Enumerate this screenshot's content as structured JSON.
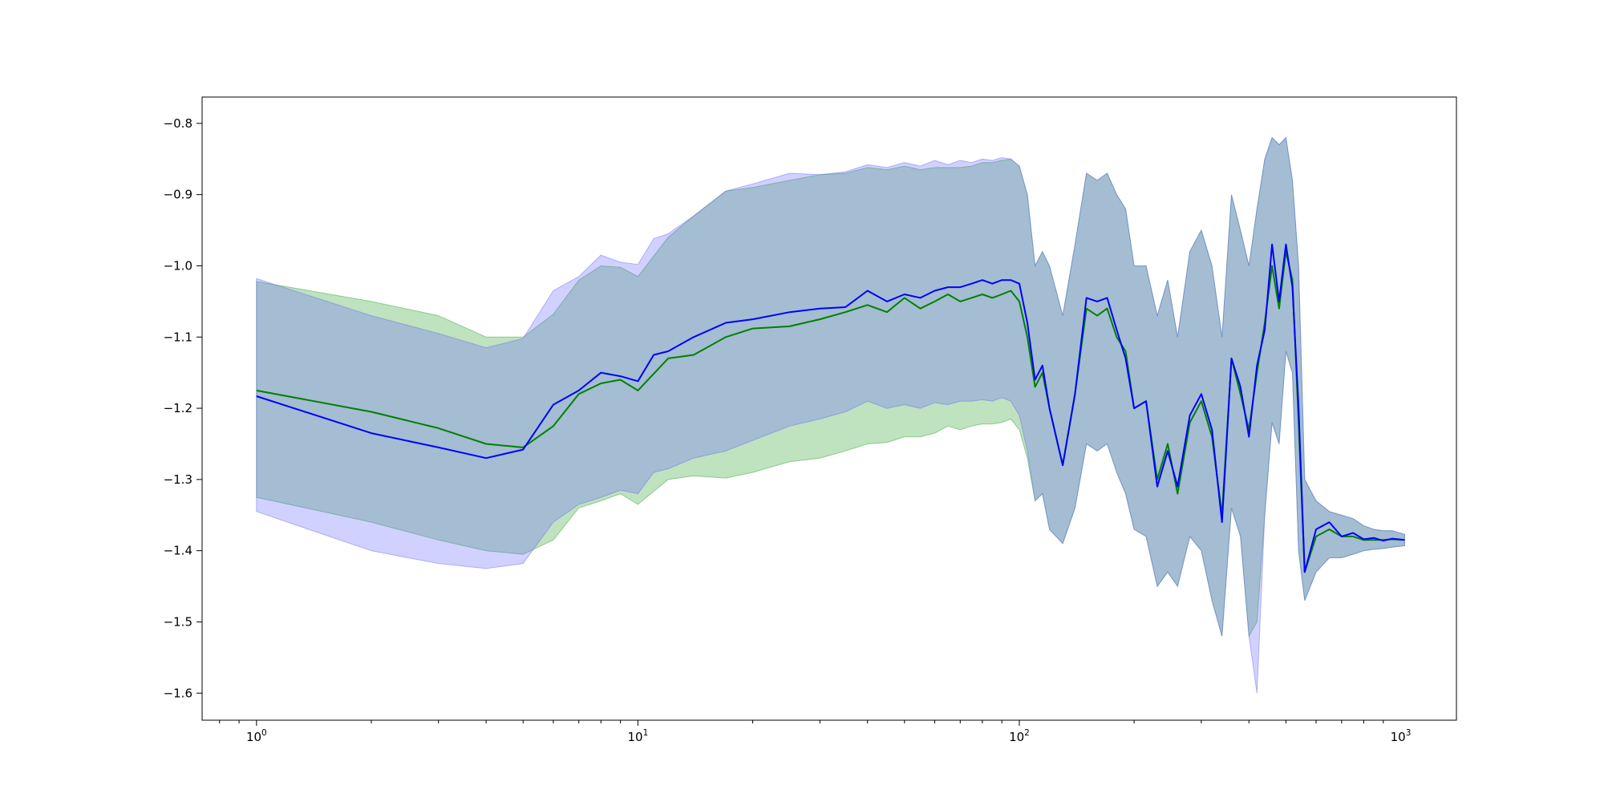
{
  "chart_data": {
    "type": "line",
    "title": "",
    "xlabel": "",
    "ylabel": "",
    "x_scale": "log",
    "xlim": [
      0.72,
      1400
    ],
    "ylim": [
      -1.638,
      -0.763
    ],
    "grid": false,
    "legend": "none",
    "x_ticks": [
      {
        "value": 1,
        "base": "10",
        "exp": "0"
      },
      {
        "value": 10,
        "base": "10",
        "exp": "1"
      },
      {
        "value": 100,
        "base": "10",
        "exp": "2"
      },
      {
        "value": 1000,
        "base": "10",
        "exp": "3"
      }
    ],
    "y_ticks": [
      {
        "value": -0.8,
        "label": "−0.8"
      },
      {
        "value": -0.9,
        "label": "−0.9"
      },
      {
        "value": -1.0,
        "label": "−1.0"
      },
      {
        "value": -1.1,
        "label": "−1.1"
      },
      {
        "value": -1.2,
        "label": "−1.2"
      },
      {
        "value": -1.3,
        "label": "−1.3"
      },
      {
        "value": -1.4,
        "label": "−1.4"
      },
      {
        "value": -1.5,
        "label": "−1.5"
      },
      {
        "value": -1.6,
        "label": "−1.6"
      }
    ],
    "series": [
      {
        "color": "#008000",
        "band_color": "#2ca02c",
        "x": [
          1,
          2,
          3,
          4,
          5,
          6,
          7,
          8,
          9,
          10,
          12,
          14,
          17,
          20,
          25,
          30,
          35,
          40,
          45,
          50,
          55,
          60,
          65,
          70,
          75,
          80,
          85,
          90,
          95,
          100,
          105,
          110,
          115,
          120,
          130,
          140,
          150,
          160,
          170,
          180,
          190,
          200,
          215,
          230,
          245,
          260,
          280,
          300,
          320,
          340,
          360,
          380,
          400,
          420,
          440,
          460,
          480,
          500,
          520,
          540,
          560,
          600,
          650,
          700,
          750,
          800,
          850,
          900,
          950,
          1024
        ],
        "mean": [
          -1.175,
          -1.205,
          -1.228,
          -1.25,
          -1.255,
          -1.225,
          -1.18,
          -1.165,
          -1.16,
          -1.175,
          -1.13,
          -1.125,
          -1.1,
          -1.088,
          -1.085,
          -1.075,
          -1.065,
          -1.055,
          -1.065,
          -1.045,
          -1.06,
          -1.05,
          -1.04,
          -1.05,
          -1.045,
          -1.04,
          -1.045,
          -1.04,
          -1.035,
          -1.05,
          -1.1,
          -1.17,
          -1.15,
          -1.2,
          -1.28,
          -1.18,
          -1.06,
          -1.07,
          -1.06,
          -1.1,
          -1.12,
          -1.2,
          -1.19,
          -1.3,
          -1.25,
          -1.32,
          -1.22,
          -1.19,
          -1.24,
          -1.35,
          -1.13,
          -1.18,
          -1.23,
          -1.15,
          -1.08,
          -1.0,
          -1.06,
          -0.98,
          -1.02,
          -1.22,
          -1.43,
          -1.38,
          -1.37,
          -1.38,
          -1.38,
          -1.385,
          -1.385,
          -1.385,
          -1.384,
          -1.385
        ],
        "upper": [
          -1.022,
          -1.05,
          -1.07,
          -1.1,
          -1.1,
          -1.068,
          -1.02,
          -1.0,
          -1.002,
          -1.015,
          -0.96,
          -0.93,
          -0.895,
          -0.89,
          -0.88,
          -0.872,
          -0.87,
          -0.862,
          -0.865,
          -0.86,
          -0.865,
          -0.862,
          -0.862,
          -0.862,
          -0.86,
          -0.855,
          -0.855,
          -0.852,
          -0.85,
          -0.86,
          -0.9,
          -1.0,
          -0.98,
          -1.0,
          -1.07,
          -0.97,
          -0.87,
          -0.88,
          -0.87,
          -0.9,
          -0.92,
          -1.0,
          -1.0,
          -1.07,
          -1.02,
          -1.1,
          -0.98,
          -0.95,
          -1.0,
          -1.1,
          -0.9,
          -0.95,
          -1.0,
          -0.92,
          -0.85,
          -0.82,
          -0.83,
          -0.82,
          -0.88,
          -1.0,
          -1.3,
          -1.33,
          -1.345,
          -1.35,
          -1.355,
          -1.365,
          -1.37,
          -1.372,
          -1.372,
          -1.377
        ],
        "lower": [
          -1.325,
          -1.36,
          -1.385,
          -1.4,
          -1.405,
          -1.385,
          -1.34,
          -1.33,
          -1.32,
          -1.335,
          -1.3,
          -1.295,
          -1.298,
          -1.29,
          -1.275,
          -1.27,
          -1.26,
          -1.25,
          -1.248,
          -1.24,
          -1.24,
          -1.235,
          -1.225,
          -1.23,
          -1.225,
          -1.222,
          -1.222,
          -1.22,
          -1.215,
          -1.23,
          -1.27,
          -1.33,
          -1.32,
          -1.37,
          -1.39,
          -1.34,
          -1.25,
          -1.26,
          -1.25,
          -1.29,
          -1.32,
          -1.37,
          -1.38,
          -1.45,
          -1.43,
          -1.45,
          -1.38,
          -1.4,
          -1.47,
          -1.52,
          -1.34,
          -1.38,
          -1.52,
          -1.5,
          -1.35,
          -1.22,
          -1.25,
          -1.12,
          -1.15,
          -1.4,
          -1.47,
          -1.43,
          -1.41,
          -1.41,
          -1.405,
          -1.4,
          -1.398,
          -1.397,
          -1.395,
          -1.393
        ]
      },
      {
        "color": "#0000ff",
        "band_color": "#6666ff",
        "x": [
          1,
          2,
          3,
          4,
          5,
          6,
          7,
          8,
          9,
          10,
          11,
          12,
          14,
          17,
          20,
          25,
          30,
          35,
          40,
          45,
          50,
          55,
          60,
          65,
          70,
          75,
          80,
          85,
          90,
          95,
          100,
          105,
          110,
          115,
          120,
          130,
          140,
          150,
          160,
          170,
          180,
          190,
          200,
          215,
          230,
          245,
          260,
          280,
          300,
          320,
          340,
          360,
          380,
          400,
          420,
          440,
          460,
          480,
          500,
          520,
          540,
          560,
          600,
          650,
          700,
          750,
          800,
          850,
          900,
          950,
          1024
        ],
        "mean": [
          -1.183,
          -1.235,
          -1.255,
          -1.27,
          -1.258,
          -1.195,
          -1.175,
          -1.15,
          -1.155,
          -1.162,
          -1.125,
          -1.12,
          -1.1,
          -1.08,
          -1.075,
          -1.065,
          -1.06,
          -1.058,
          -1.035,
          -1.05,
          -1.04,
          -1.045,
          -1.035,
          -1.03,
          -1.03,
          -1.025,
          -1.02,
          -1.025,
          -1.02,
          -1.02,
          -1.025,
          -1.08,
          -1.16,
          -1.14,
          -1.2,
          -1.28,
          -1.18,
          -1.045,
          -1.05,
          -1.045,
          -1.09,
          -1.13,
          -1.2,
          -1.19,
          -1.31,
          -1.26,
          -1.31,
          -1.21,
          -1.18,
          -1.23,
          -1.36,
          -1.13,
          -1.17,
          -1.24,
          -1.14,
          -1.09,
          -0.97,
          -1.05,
          -0.97,
          -1.03,
          -1.2,
          -1.43,
          -1.37,
          -1.36,
          -1.38,
          -1.375,
          -1.384,
          -1.382,
          -1.386,
          -1.383,
          -1.385
        ],
        "upper": [
          -1.018,
          -1.07,
          -1.095,
          -1.115,
          -1.102,
          -1.035,
          -1.015,
          -0.985,
          -0.995,
          -0.998,
          -0.962,
          -0.955,
          -0.93,
          -0.895,
          -0.885,
          -0.87,
          -0.872,
          -0.868,
          -0.858,
          -0.862,
          -0.855,
          -0.86,
          -0.852,
          -0.858,
          -0.852,
          -0.855,
          -0.85,
          -0.852,
          -0.848,
          -0.85,
          -0.86,
          -0.9,
          -1.0,
          -0.98,
          -1.0,
          -1.07,
          -0.97,
          -0.87,
          -0.88,
          -0.87,
          -0.9,
          -0.92,
          -1.0,
          -1.0,
          -1.07,
          -1.02,
          -1.1,
          -0.98,
          -0.95,
          -1.0,
          -1.1,
          -0.9,
          -0.95,
          -1.0,
          -0.92,
          -0.85,
          -0.82,
          -0.83,
          -0.82,
          -0.88,
          -1.0,
          -1.3,
          -1.33,
          -1.345,
          -1.35,
          -1.355,
          -1.365,
          -1.37,
          -1.372,
          -1.372,
          -1.377
        ],
        "lower": [
          -1.345,
          -1.4,
          -1.418,
          -1.425,
          -1.418,
          -1.36,
          -1.335,
          -1.325,
          -1.315,
          -1.32,
          -1.29,
          -1.285,
          -1.27,
          -1.26,
          -1.245,
          -1.225,
          -1.215,
          -1.205,
          -1.19,
          -1.2,
          -1.195,
          -1.2,
          -1.192,
          -1.195,
          -1.19,
          -1.19,
          -1.188,
          -1.19,
          -1.185,
          -1.19,
          -1.21,
          -1.26,
          -1.33,
          -1.32,
          -1.37,
          -1.39,
          -1.34,
          -1.25,
          -1.26,
          -1.25,
          -1.29,
          -1.32,
          -1.37,
          -1.38,
          -1.45,
          -1.43,
          -1.45,
          -1.38,
          -1.4,
          -1.47,
          -1.52,
          -1.34,
          -1.38,
          -1.52,
          -1.6,
          -1.35,
          -1.22,
          -1.25,
          -1.12,
          -1.15,
          -1.4,
          -1.47,
          -1.43,
          -1.41,
          -1.41,
          -1.405,
          -1.4,
          -1.398,
          -1.397,
          -1.395,
          -1.393
        ]
      }
    ]
  }
}
